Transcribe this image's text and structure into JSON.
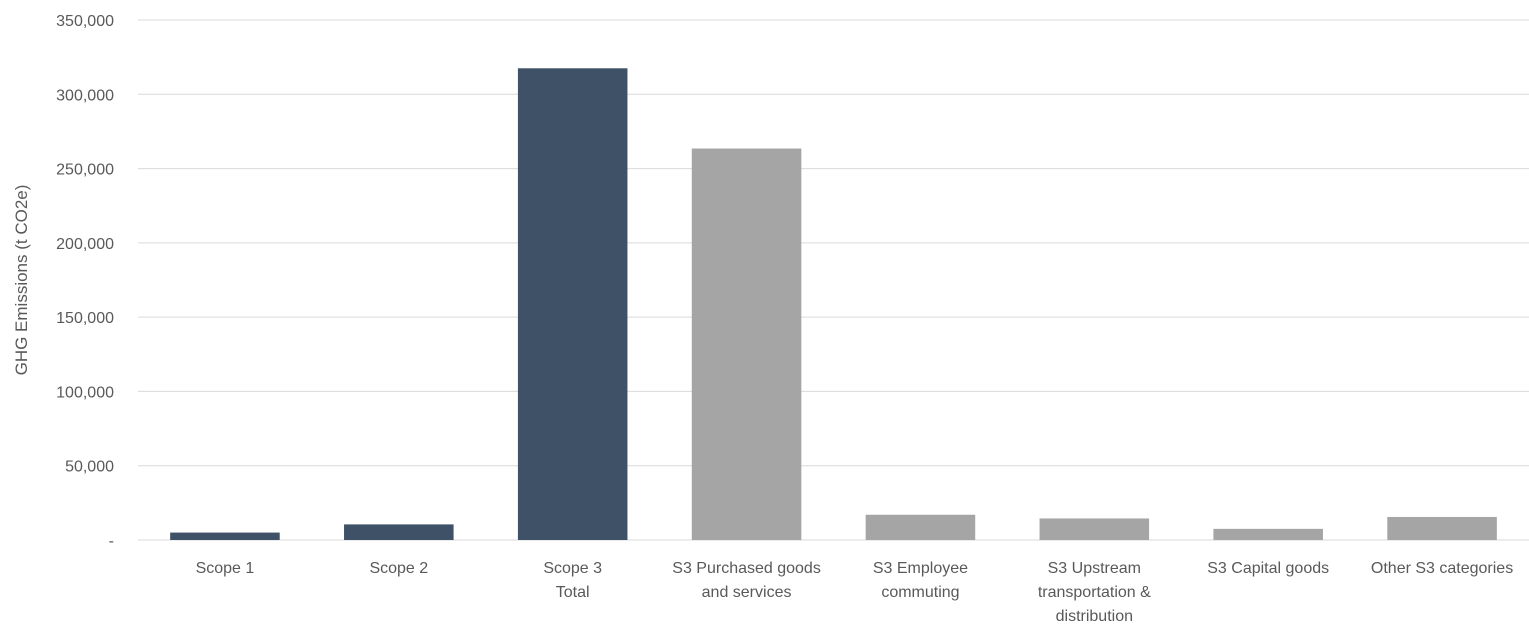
{
  "chart_data": {
    "type": "bar",
    "title": "",
    "xlabel": "",
    "ylabel": "GHG Emissions (t CO2e)",
    "ylim": [
      0,
      350000
    ],
    "yticks": [
      0,
      50000,
      100000,
      150000,
      200000,
      250000,
      300000,
      350000
    ],
    "ytick_labels": [
      "-",
      "50,000",
      "100,000",
      "150,000",
      "200,000",
      "250,000",
      "300,000",
      "350,000"
    ],
    "grid": true,
    "legend": "none",
    "categories": [
      [
        "Scope 1"
      ],
      [
        "Scope 2"
      ],
      [
        "Scope 3",
        "Total"
      ],
      [
        "S3 Purchased goods",
        "and services"
      ],
      [
        "S3 Employee",
        "commuting"
      ],
      [
        "S3 Upstream",
        "transportation &",
        "distribution"
      ],
      [
        "S3 Capital goods"
      ],
      [
        "Other S3 categories"
      ]
    ],
    "values": [
      5000,
      10500,
      317500,
      263500,
      17000,
      14500,
      7500,
      15500
    ],
    "bar_colors": [
      "#3F5166",
      "#3F5166",
      "#3F5166",
      "#A5A5A5",
      "#A5A5A5",
      "#A5A5A5",
      "#A5A5A5",
      "#A5A5A5"
    ],
    "gridline_color": "#D9D9D9",
    "text_color": "#595959"
  }
}
